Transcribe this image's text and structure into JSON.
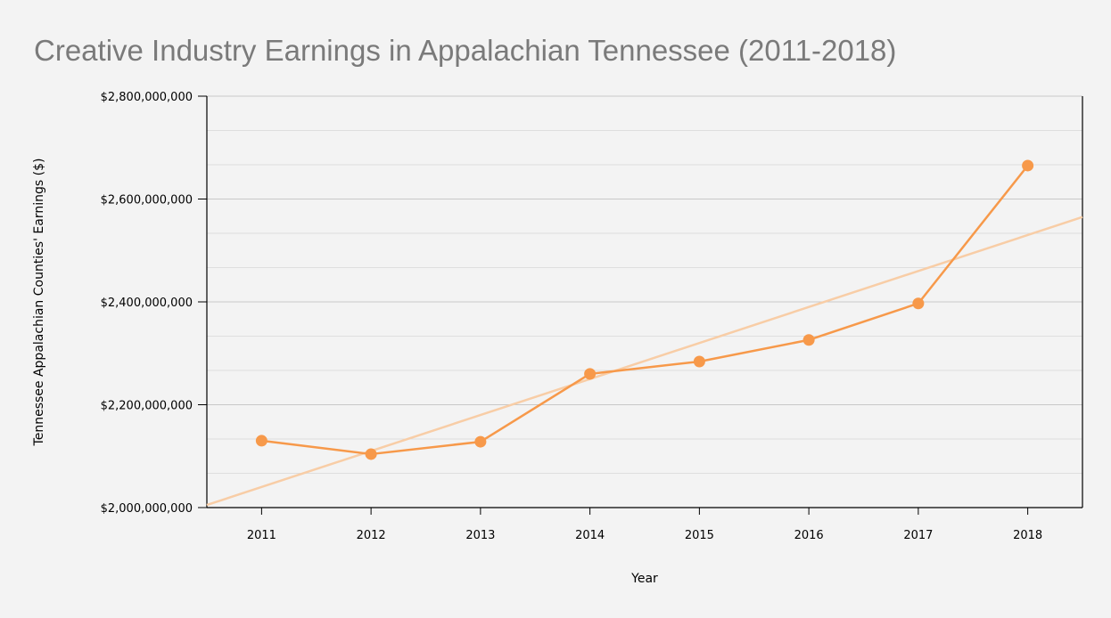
{
  "chart_data": {
    "type": "line",
    "title": "Creative Industry Earnings in Appalachian Tennessee (2011-2018)",
    "xlabel": "Year",
    "ylabel": "Tennessee Appalachian Counties' Earnings ($)",
    "categories": [
      "2011",
      "2012",
      "2013",
      "2014",
      "2015",
      "2016",
      "2017",
      "2018"
    ],
    "series": [
      {
        "values": [
          2130000000,
          2104000000,
          2128000000,
          2260000000,
          2284000000,
          2326000000,
          2397000000,
          2665000000
        ]
      }
    ],
    "trendline": {
      "type": "linear",
      "start_value": 2005000000,
      "end_value": 2565000000
    },
    "ylim": [
      2000000000,
      2800000000
    ],
    "yticks": [
      2000000000,
      2200000000,
      2400000000,
      2600000000,
      2800000000
    ],
    "ytick_labels": [
      "$2,000,000,000",
      "$2,200,000,000",
      "$2,400,000,000",
      "$2,600,000,000",
      "$2,800,000,000"
    ],
    "grid": true,
    "legend": "none",
    "colors": {
      "series": "#f7994a",
      "trend": "#f8cda6",
      "title": "#7a7a7a",
      "grid_major": "#c8c8c8",
      "grid_minor": "#dedede",
      "background": "#f3f3f3"
    }
  }
}
